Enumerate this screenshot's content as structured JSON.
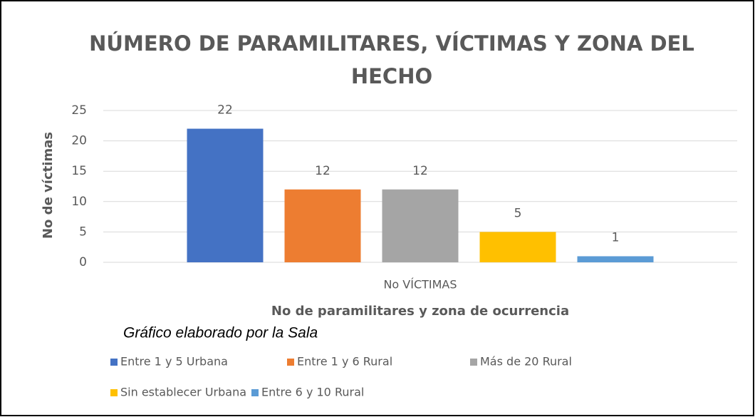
{
  "chart_data": {
    "type": "bar",
    "title": "NÚMERO DE PARAMILITARES, VÍCTIMAS Y ZONA DEL HECHO",
    "categories": [
      "No VÍCTIMAS"
    ],
    "series": [
      {
        "name": "Entre 1 y 5 Urbana",
        "color": "#4472c4",
        "values": [
          22
        ]
      },
      {
        "name": "Entre 1 y 6 Rural",
        "color": "#ed7d31",
        "values": [
          12
        ]
      },
      {
        "name": "Más de 20 Rural",
        "color": "#a5a5a5",
        "values": [
          12
        ]
      },
      {
        "name": "Sin establecer Urbana",
        "color": "#ffc000",
        "values": [
          5
        ]
      },
      {
        "name": "Entre 6 y 10 Rural",
        "color": "#5b9bd5",
        "values": [
          1
        ]
      }
    ],
    "y_label": "No de víctimas",
    "x_label": "No de paramilitares  y zona de ocurrencia",
    "annotation": "Gráfico elaborado por la Sala",
    "ylim": [
      0,
      25
    ],
    "yticks": [
      0,
      5,
      10,
      15,
      20,
      25
    ],
    "grid": true,
    "legend": "bottom"
  }
}
